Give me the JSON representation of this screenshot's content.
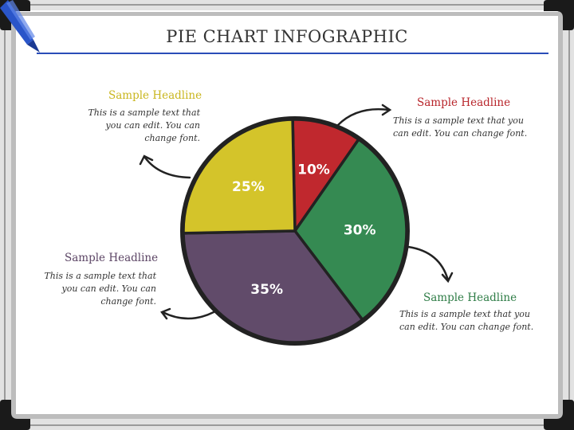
{
  "title": "PIE CHART INFOGRAPHIC",
  "colors": {
    "yellow": "#d4c42a",
    "red": "#c0282e",
    "green": "#358a52",
    "purple": "#614b6a",
    "accent": "#2a4db8",
    "outline": "#222222"
  },
  "callouts": [
    {
      "headline": "Sample Headline",
      "text": "This is a sample text that you can edit. You can change font.",
      "color": "#c9b61e"
    },
    {
      "headline": "Sample Headline",
      "text": "This is a sample text that you can edit. You can change font.",
      "color": "#b8252b"
    },
    {
      "headline": "Sample Headline",
      "text": "This is a sample text that you can edit. You can change font.",
      "color": "#2f7d47"
    },
    {
      "headline": "Sample Headline",
      "text": "This is a sample text that you can edit. You can change font.",
      "color": "#5c4565"
    }
  ],
  "chart_data": {
    "type": "pie",
    "title": "PIE CHART INFOGRAPHIC",
    "slices": [
      {
        "label": "10%",
        "value": 10,
        "color": "#c0282e"
      },
      {
        "label": "30%",
        "value": 30,
        "color": "#358a52"
      },
      {
        "label": "35%",
        "value": 35,
        "color": "#614b6a"
      },
      {
        "label": "25%",
        "value": 25,
        "color": "#d4c42a"
      }
    ]
  }
}
